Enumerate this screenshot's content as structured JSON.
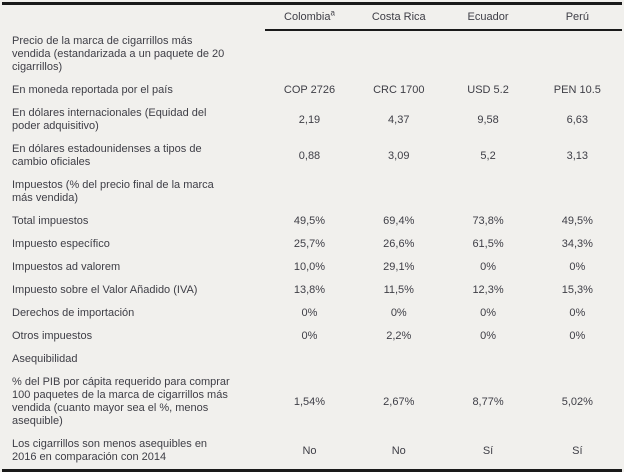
{
  "table": {
    "title_semantic": "precios-e-impuestos-cigarrillos",
    "colors": {
      "background": "#f1f0ed",
      "text": "#3e3e46",
      "border": "#1a1a1a"
    },
    "header": {
      "columns": [
        {
          "label": "Colombia",
          "superscript": "a"
        },
        {
          "label": "Costa Rica",
          "superscript": ""
        },
        {
          "label": "Ecuador",
          "superscript": ""
        },
        {
          "label": "Perú",
          "superscript": ""
        }
      ]
    },
    "rows": [
      {
        "label": "Precio de la marca de cigarrillos más vendida (estandarizada a un paquete de 20 cigarrillos)",
        "values": [
          "",
          "",
          "",
          ""
        ]
      },
      {
        "label": "En moneda reportada por el país",
        "values": [
          "COP 2726",
          "CRC 1700",
          "USD 5.2",
          "PEN 10.5"
        ]
      },
      {
        "label": "En dólares internacionales (Equidad del poder adquisitivo)",
        "values": [
          "2,19",
          "4,37",
          "9,58",
          "6,63"
        ]
      },
      {
        "label": "En dólares estadounidenses a tipos de cambio oficiales",
        "values": [
          "0,88",
          "3,09",
          "5,2",
          "3,13"
        ]
      },
      {
        "label": "Impuestos (% del precio final de la marca más vendida)",
        "values": [
          "",
          "",
          "",
          ""
        ]
      },
      {
        "label": "Total impuestos",
        "values": [
          "49,5%",
          "69,4%",
          "73,8%",
          "49,5%"
        ]
      },
      {
        "label": "Impuesto específico",
        "values": [
          "25,7%",
          "26,6%",
          "61,5%",
          "34,3%"
        ]
      },
      {
        "label": "Impuestos ad valorem",
        "values": [
          "10,0%",
          "29,1%",
          "0%",
          "0%"
        ]
      },
      {
        "label": "Impuesto sobre el Valor Añadido (IVA)",
        "values": [
          "13,8%",
          "11,5%",
          "12,3%",
          "15,3%"
        ]
      },
      {
        "label": "Derechos de importación",
        "values": [
          "0%",
          "0%",
          "0%",
          "0%"
        ]
      },
      {
        "label": "Otros impuestos",
        "values": [
          "0%",
          "2,2%",
          "0%",
          "0%"
        ]
      },
      {
        "label": "Asequibilidad",
        "values": [
          "",
          "",
          "",
          ""
        ]
      },
      {
        "label": "% del PIB por cápita requerido para comprar 100 paquetes de la marca de cigarrillos más vendida (cuanto mayor sea el %, menos asequible)",
        "values": [
          "1,54%",
          "2,67%",
          "8,77%",
          "5,02%"
        ]
      },
      {
        "label": "Los cigarrillos son menos asequibles en 2016 en comparación con 2014",
        "values": [
          "No",
          "No",
          "Sí",
          "Sí"
        ]
      }
    ]
  }
}
